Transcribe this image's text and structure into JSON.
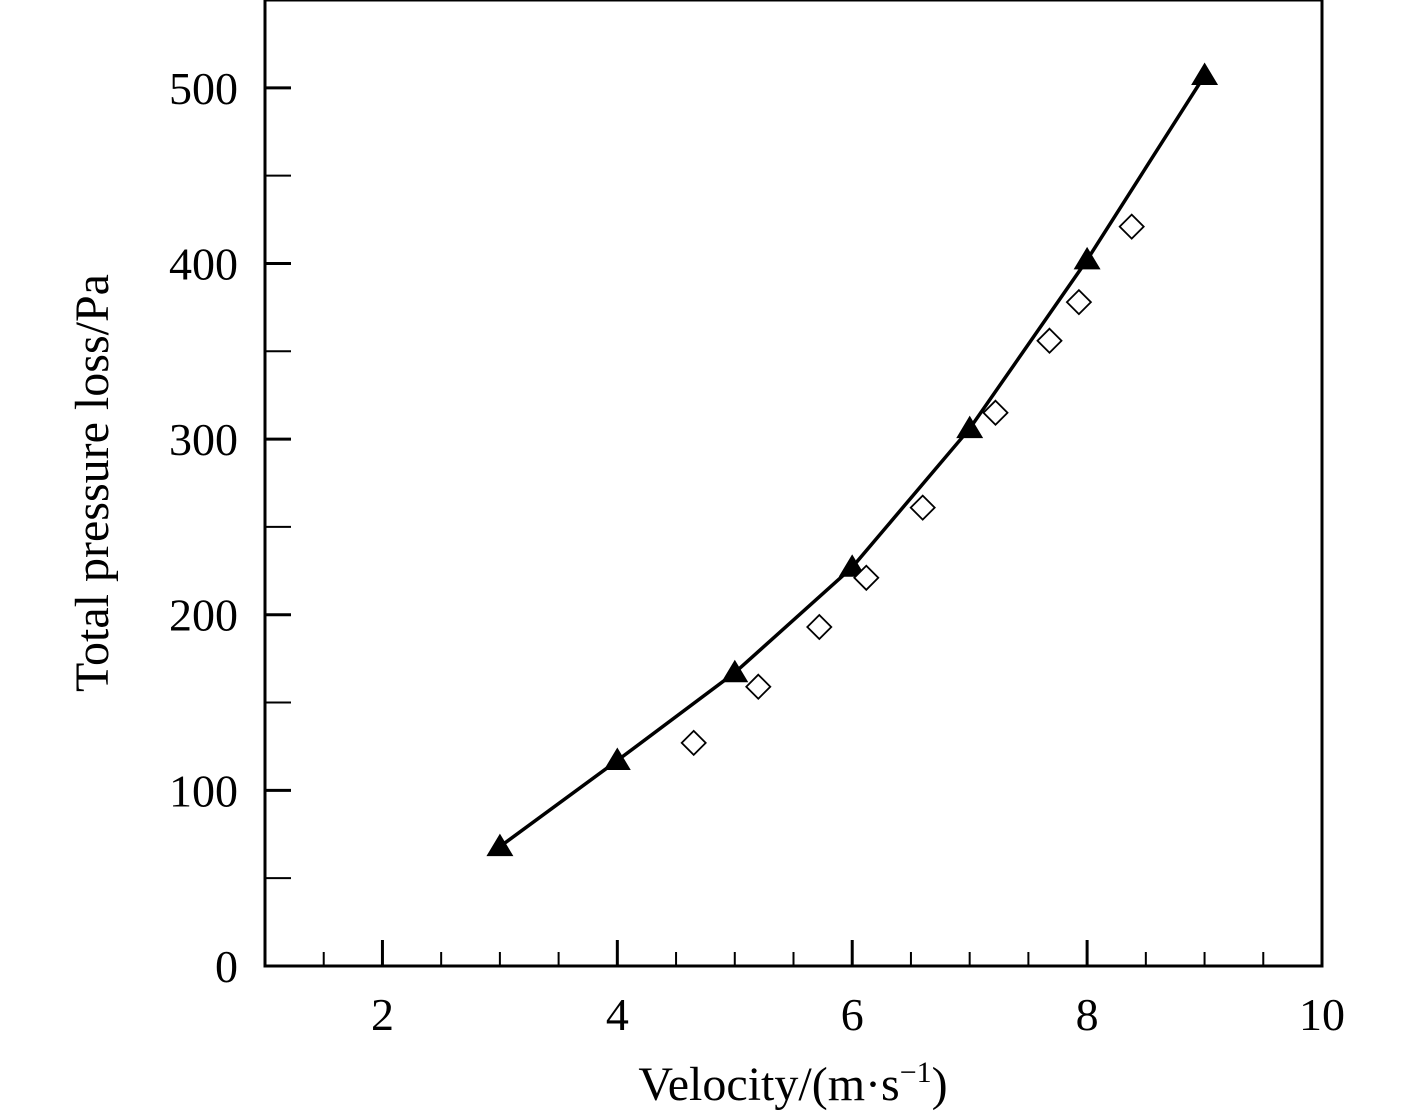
{
  "chart_data": {
    "type": "line",
    "title": "",
    "xlabel": "Velocity/(m·s",
    "xlabel_sup": "−1",
    "xlabel_close": ")",
    "ylabel": "Total pressure loss/Pa",
    "xlim": [
      1,
      10
    ],
    "ylim": [
      0,
      550
    ],
    "x_major_ticks": [
      2,
      4,
      6,
      8,
      10
    ],
    "x_minor_ticks": [
      1.5,
      2.5,
      3,
      3.5,
      4.5,
      5,
      5.5,
      6.5,
      7,
      7.5,
      8.5,
      9,
      9.5
    ],
    "y_major_ticks": [
      0,
      100,
      200,
      300,
      400,
      500
    ],
    "y_minor_ticks": [
      50,
      150,
      250,
      350,
      450
    ],
    "x_tick_labels": [
      "2",
      "4",
      "6",
      "8",
      "10"
    ],
    "y_tick_labels": [
      "0",
      "100",
      "200",
      "300",
      "400",
      "500"
    ],
    "grid": false,
    "legend": "none",
    "series": [
      {
        "marker": "filled-triangle",
        "line": "solid",
        "color": "#000000",
        "x": [
          3,
          4,
          5,
          6,
          7,
          8,
          9
        ],
        "y": [
          68,
          117,
          167,
          227,
          306,
          402,
          507
        ]
      },
      {
        "marker": "open-diamond",
        "line": "none",
        "color": "#000000",
        "x": [
          4.65,
          5.2,
          5.72,
          6.12,
          6.6,
          7.22,
          7.68,
          7.93,
          8.38
        ],
        "y": [
          127,
          159,
          193,
          221,
          261,
          315,
          356,
          378,
          421
        ]
      }
    ]
  }
}
